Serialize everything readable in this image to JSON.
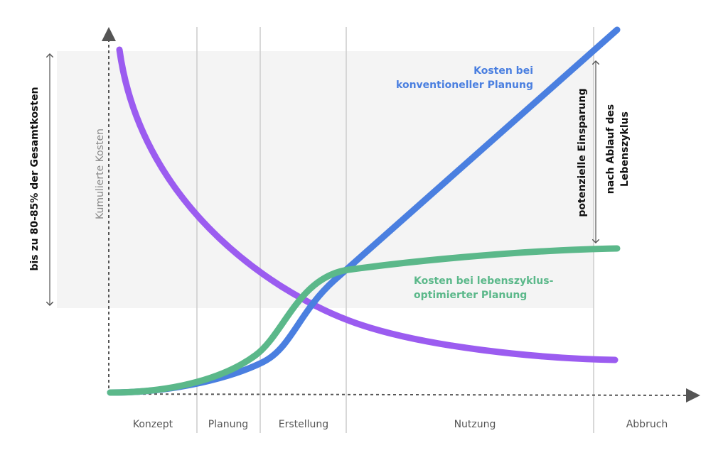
{
  "diagram": {
    "left_label": "bis zu 80-85% der Gesamtkosten",
    "y_axis_label": "Kumulierte Kosten",
    "phases": [
      "Konzept",
      "Planung",
      "Erstellung",
      "Nutzung",
      "Abbruch"
    ],
    "conventional_label": [
      "Kosten bei",
      "konventioneller Planung"
    ],
    "optimized_label": [
      "Kosten bei lebenszyklus-",
      "optimierter Planung"
    ],
    "savings_label": "potenzielle Einsparung",
    "savings_note": [
      "nach Ablauf des",
      "Lebenszyklus"
    ]
  }
}
